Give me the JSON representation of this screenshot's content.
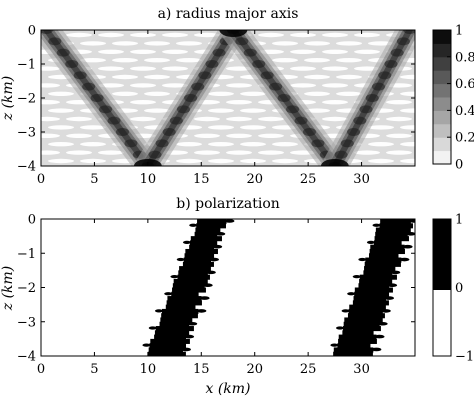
{
  "chart_data": [
    {
      "type": "heatmap",
      "title": "a) radius major axis",
      "ylabel": "z (km)",
      "xlim": [
        0,
        35
      ],
      "ylim": [
        -4,
        0
      ],
      "xticks": [
        0,
        5,
        10,
        15,
        20,
        25,
        30
      ],
      "yticks": [
        0,
        -1,
        -2,
        -3,
        -4
      ],
      "colorbar": {
        "ticks": [
          0,
          0.2,
          0.4,
          0.6,
          0.8,
          1
        ],
        "range": [
          0,
          1
        ],
        "levels": 10
      },
      "beam_paths": [
        {
          "from": [
            0.5,
            0
          ],
          "to": [
            10,
            -4
          ]
        },
        {
          "from": [
            10,
            -4
          ],
          "to": [
            18,
            0
          ]
        },
        {
          "from": [
            18,
            0
          ],
          "to": [
            27.5,
            -4
          ]
        },
        {
          "from": [
            27.5,
            -4
          ],
          "to": [
            34.5,
            0
          ]
        }
      ],
      "background_value": 0.15,
      "peak_value": 1.0
    },
    {
      "type": "heatmap",
      "title": "b) polarization",
      "xlabel": "x (km)",
      "ylabel": "z (km)",
      "xlim": [
        0,
        35
      ],
      "ylim": [
        -4,
        0
      ],
      "xticks": [
        0,
        5,
        10,
        15,
        20,
        25,
        30
      ],
      "yticks": [
        0,
        -1,
        -2,
        -3,
        -4
      ],
      "colorbar": {
        "ticks": [
          -1,
          0,
          1
        ],
        "range": [
          -1,
          1
        ]
      },
      "regions": [
        {
          "value": 1,
          "x_range_at_bottom": [
            10,
            13
          ],
          "x_range_at_top": [
            15,
            17
          ]
        },
        {
          "value": 1,
          "x_range_at_bottom": [
            27.5,
            30.5
          ],
          "x_range_at_top": [
            32,
            34.5
          ]
        }
      ],
      "background_value": -1
    }
  ]
}
